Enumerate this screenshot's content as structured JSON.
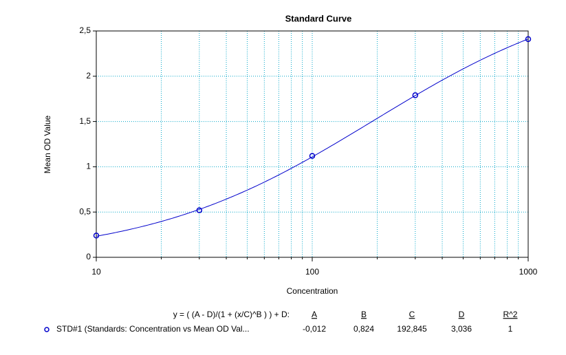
{
  "chart_data": {
    "type": "line",
    "title": "Standard Curve",
    "x_label": "Concentration",
    "y_label": "Mean OD Value",
    "xlim": [
      10,
      1000
    ],
    "xticks": [
      10,
      100,
      1000
    ],
    "x_log": true,
    "minor_grid": true,
    "ylim": [
      0,
      2.5
    ],
    "yticks": [
      0,
      {
        "value": 0.5,
        "label": "0,5"
      },
      1,
      {
        "value": 1.5,
        "label": "1,5"
      },
      2,
      {
        "value": 2.5,
        "label": "2,5"
      }
    ],
    "grid": true,
    "series": [
      {
        "name": "STD#1 (Standards: Concentration vs Mean OD Val...",
        "color": "#0000cc",
        "x": [
          10,
          30,
          100,
          300,
          1000
        ],
        "values": [
          0.24,
          0.52,
          1.12,
          1.79,
          2.41
        ]
      }
    ],
    "fit": {
      "formula": "y = ( (A - D)/(1 + (x/C)^B ) ) + D:",
      "columns": [
        "A",
        "B",
        "C",
        "D",
        "R^2"
      ],
      "values": [
        -0.012,
        0.824,
        192.845,
        3.036,
        1
      ],
      "value_labels": [
        "-0,012",
        "0,824",
        "192,845",
        "3,036",
        "1"
      ]
    }
  }
}
